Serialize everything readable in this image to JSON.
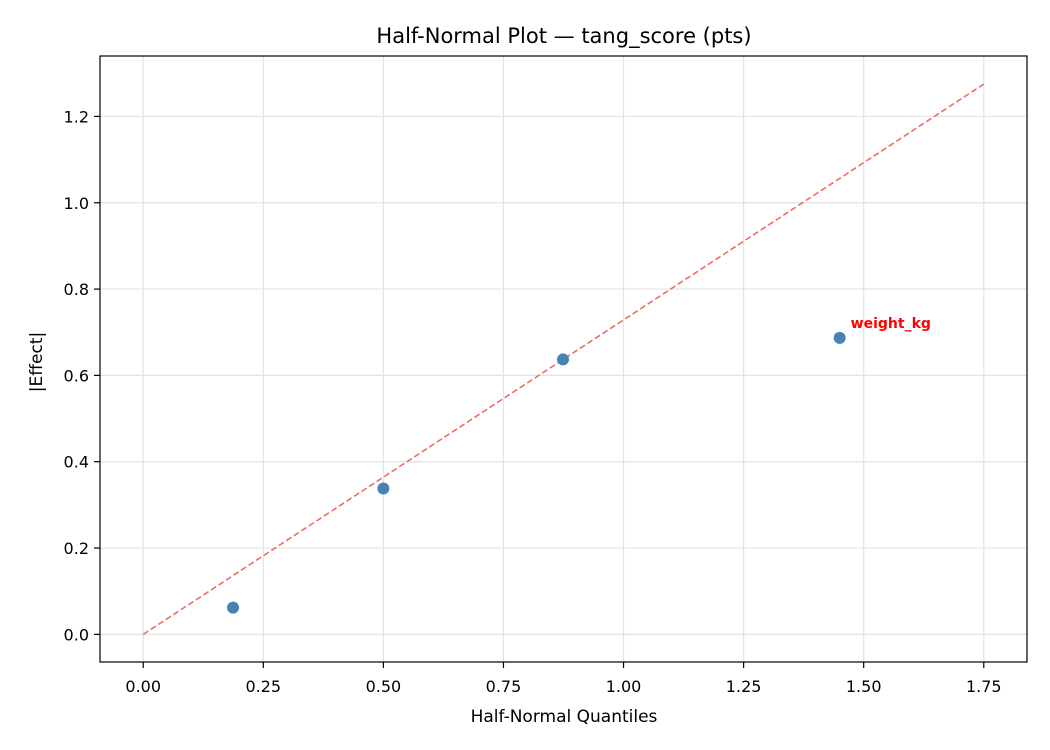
{
  "chart_data": {
    "type": "scatter",
    "title": "Half-Normal Plot — tang_score (pts)",
    "xlabel": "Half-Normal Quantiles",
    "ylabel": "|Effect|",
    "xlim": [
      -0.09,
      1.84
    ],
    "ylim": [
      -0.064,
      1.34
    ],
    "xticks": [
      0.0,
      0.25,
      0.5,
      0.75,
      1.0,
      1.25,
      1.5,
      1.75
    ],
    "xtick_labels": [
      "0.00",
      "0.25",
      "0.50",
      "0.75",
      "1.00",
      "1.25",
      "1.50",
      "1.75"
    ],
    "yticks": [
      0.0,
      0.2,
      0.4,
      0.6,
      0.8,
      1.0,
      1.2
    ],
    "ytick_labels": [
      "0.0",
      "0.2",
      "0.4",
      "0.6",
      "0.8",
      "1.0",
      "1.2"
    ],
    "grid": true,
    "points": [
      {
        "x": 0.187,
        "y": 0.062
      },
      {
        "x": 0.5,
        "y": 0.338
      },
      {
        "x": 0.874,
        "y": 0.637
      },
      {
        "x": 1.45,
        "y": 0.687
      }
    ],
    "reference_line": {
      "x": [
        0.0,
        1.75
      ],
      "y": [
        0.0,
        1.275
      ],
      "style": "dashed"
    },
    "annotations": [
      {
        "text": "weight_kg",
        "x": 1.45,
        "y": 0.687
      }
    ],
    "colors": {
      "points": "#4682b4",
      "reference_line": "#f26b63",
      "annotation": "#ff0000",
      "grid": "#e3e3e3"
    }
  }
}
